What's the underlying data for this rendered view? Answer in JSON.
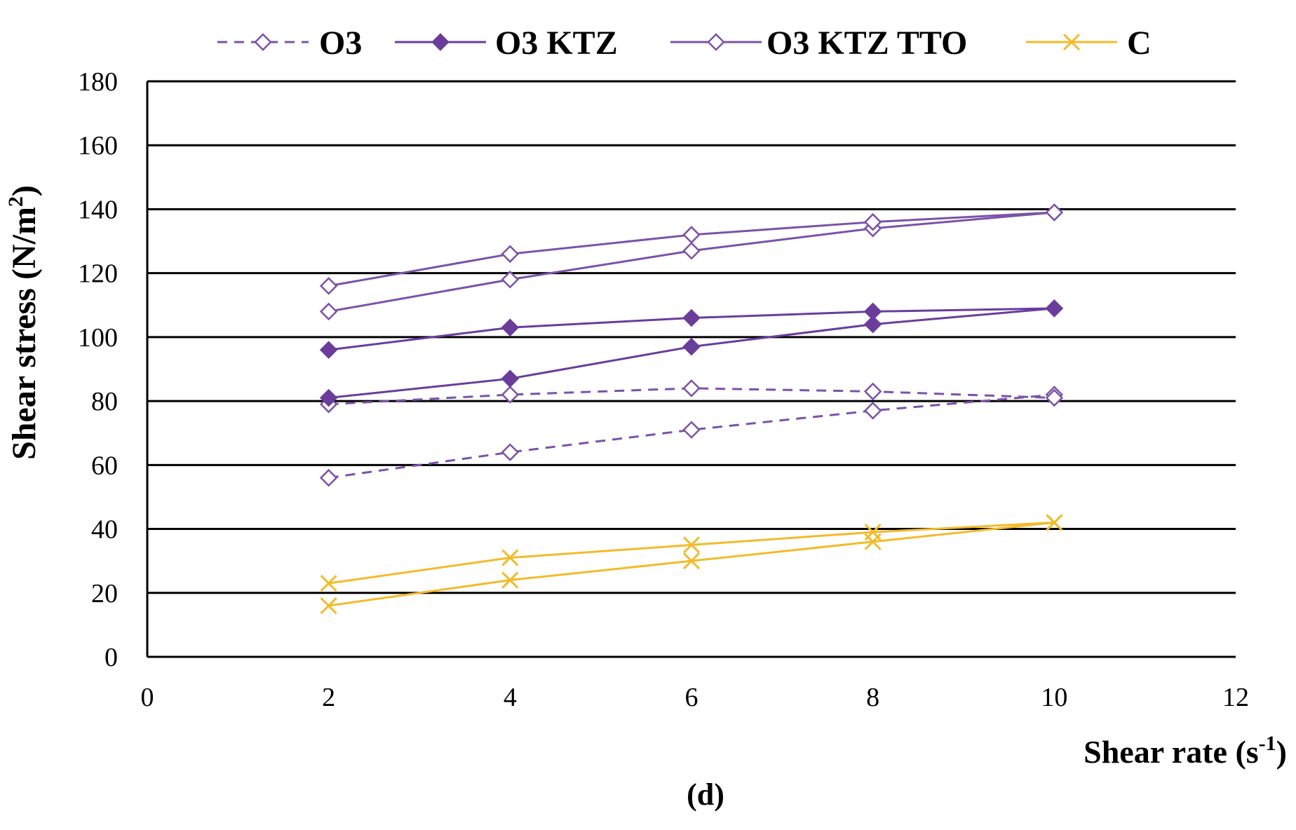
{
  "chart_data": {
    "type": "line",
    "caption": "(d)",
    "xlabel": "Shear rate (s",
    "xlabel_sup": "-1",
    "xlabel_end": ")",
    "ylabel": "Shear stress (N/m",
    "ylabel_sup": "2",
    "ylabel_end": ")",
    "xlim": [
      0,
      12
    ],
    "ylim": [
      0,
      180
    ],
    "x_ticks": [
      0,
      2,
      4,
      6,
      8,
      10,
      12
    ],
    "y_ticks": [
      0,
      20,
      40,
      60,
      80,
      100,
      120,
      140,
      160,
      180
    ],
    "grid": "horizontal",
    "legend_position": "top",
    "colors": {
      "purple": "#7b52a8",
      "purple_dark": "#6a3d9a",
      "gold": "#f2bb2a"
    },
    "series": [
      {
        "name": "O3",
        "style": "dashed",
        "marker": "diamond-open",
        "color": "#7b52a8",
        "curves": [
          {
            "x": [
              2,
              4,
              6,
              8,
              10
            ],
            "y": [
              56,
              64,
              71,
              77,
              82
            ]
          },
          {
            "x": [
              2,
              4,
              6,
              8,
              10
            ],
            "y": [
              79,
              82,
              84,
              83,
              81
            ]
          }
        ]
      },
      {
        "name": "O3 KTZ",
        "style": "solid",
        "marker": "diamond-filled",
        "color": "#6a3d9a",
        "curves": [
          {
            "x": [
              2,
              4,
              6,
              8,
              10
            ],
            "y": [
              81,
              87,
              97,
              104,
              109
            ]
          },
          {
            "x": [
              2,
              4,
              6,
              8,
              10
            ],
            "y": [
              96,
              103,
              106,
              108,
              109
            ]
          }
        ]
      },
      {
        "name": "O3 KTZ TTO",
        "style": "solid",
        "marker": "diamond-open",
        "color": "#7b52a8",
        "curves": [
          {
            "x": [
              2,
              4,
              6,
              8,
              10
            ],
            "y": [
              108,
              118,
              127,
              134,
              139
            ]
          },
          {
            "x": [
              2,
              4,
              6,
              8,
              10
            ],
            "y": [
              116,
              126,
              132,
              136,
              139
            ]
          }
        ]
      },
      {
        "name": "C",
        "style": "solid",
        "marker": "x",
        "color": "#f2bb2a",
        "curves": [
          {
            "x": [
              2,
              4,
              6,
              8,
              10
            ],
            "y": [
              16,
              24,
              30,
              36,
              42
            ]
          },
          {
            "x": [
              2,
              4,
              6,
              8,
              10
            ],
            "y": [
              23,
              31,
              35,
              39,
              42
            ]
          }
        ]
      }
    ]
  }
}
